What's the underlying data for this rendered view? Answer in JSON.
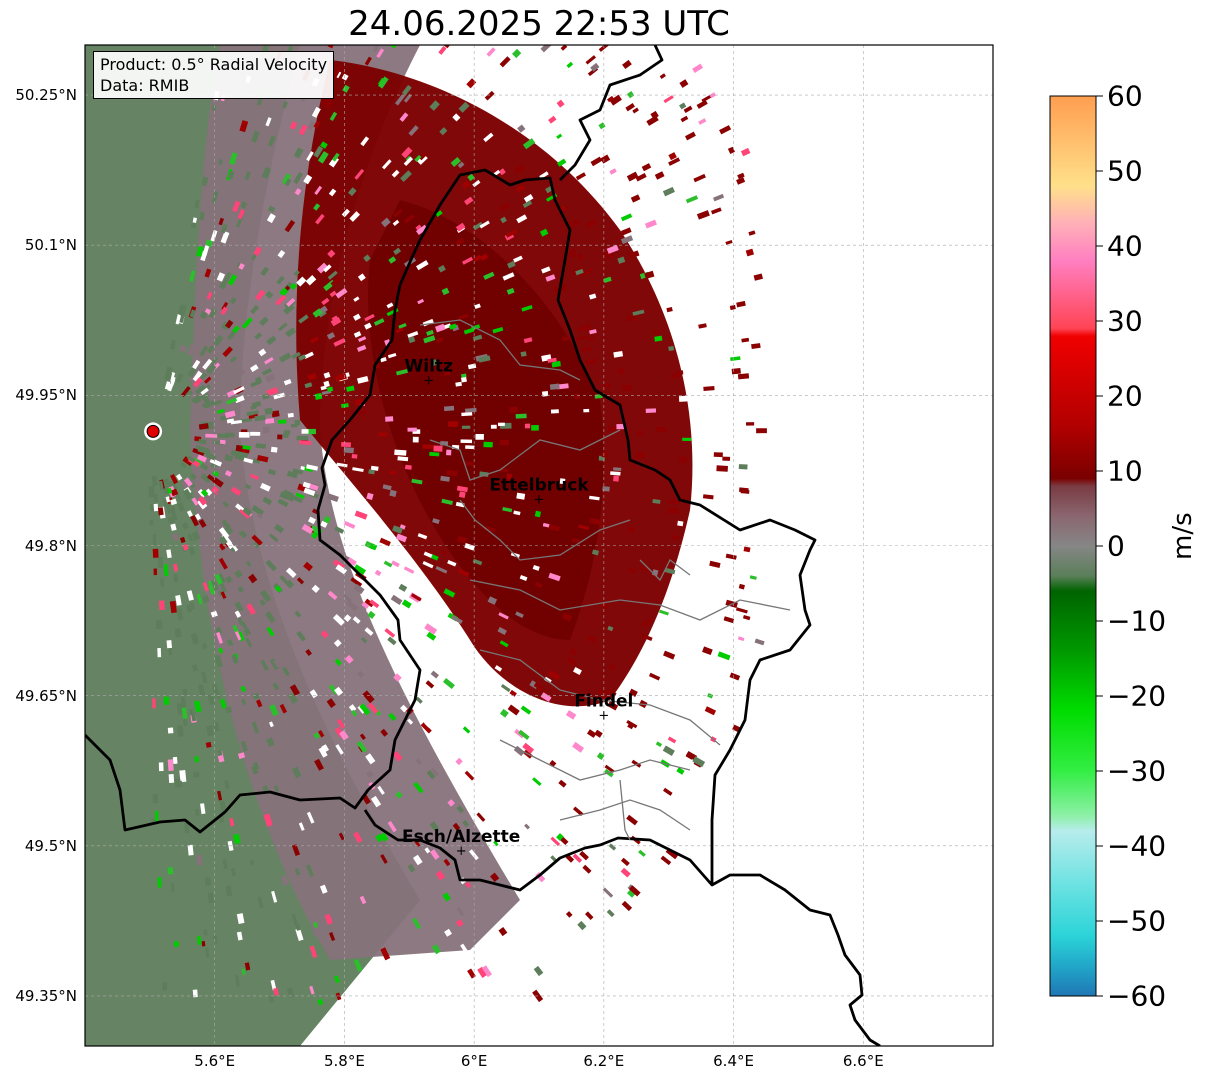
{
  "title": "24.06.2025 22:53 UTC",
  "info": {
    "product": "Product: 0.5° Radial Velocity",
    "source": "Data: RMIB"
  },
  "map": {
    "lon_range": [
      5.4,
      6.8
    ],
    "lat_range": [
      49.3,
      50.3
    ],
    "lat_ticks": [
      {
        "value": 50.25,
        "label": "50.25°N"
      },
      {
        "value": 50.1,
        "label": "50.1°N"
      },
      {
        "value": 49.95,
        "label": "49.95°N"
      },
      {
        "value": 49.8,
        "label": "49.8°N"
      },
      {
        "value": 49.65,
        "label": "49.65°N"
      },
      {
        "value": 49.5,
        "label": "49.5°N"
      },
      {
        "value": 49.35,
        "label": "49.35°N"
      }
    ],
    "lon_ticks": [
      {
        "value": 5.6,
        "label": "5.6°E"
      },
      {
        "value": 5.8,
        "label": "5.8°E"
      },
      {
        "value": 6.0,
        "label": "6°E"
      },
      {
        "value": 6.2,
        "label": "6.2°E"
      },
      {
        "value": 6.4,
        "label": "6.4°E"
      },
      {
        "value": 6.6,
        "label": "6.6°E"
      }
    ],
    "gridlines": true,
    "radar_site": {
      "lon": 5.505,
      "lat": 49.914
    },
    "cities": [
      {
        "name": "Wiltz",
        "lon": 5.93,
        "lat": 49.966
      },
      {
        "name": "Ettelbruck",
        "lon": 6.1,
        "lat": 49.847
      },
      {
        "name": "Findel",
        "lon": 6.2,
        "lat": 49.631
      },
      {
        "name": "Esch/Alzette",
        "lon": 5.98,
        "lat": 49.496
      }
    ]
  },
  "colorbar": {
    "unit": "m/s",
    "min": -60,
    "max": 60,
    "ticks": [
      {
        "value": 60,
        "label": "60"
      },
      {
        "value": 50,
        "label": "50"
      },
      {
        "value": 40,
        "label": "40"
      },
      {
        "value": 30,
        "label": "30"
      },
      {
        "value": 20,
        "label": "20"
      },
      {
        "value": 10,
        "label": "10"
      },
      {
        "value": 0,
        "label": "0"
      },
      {
        "value": -10,
        "label": "−10"
      },
      {
        "value": -20,
        "label": "−20"
      },
      {
        "value": -30,
        "label": "−30"
      },
      {
        "value": -40,
        "label": "−40"
      },
      {
        "value": -50,
        "label": "−50"
      },
      {
        "value": -60,
        "label": "−60"
      }
    ],
    "stops": [
      {
        "value": -60,
        "color": "#1f77b4"
      },
      {
        "value": -56,
        "color": "#21a7c9"
      },
      {
        "value": -52,
        "color": "#2bd4d8"
      },
      {
        "value": -45,
        "color": "#6ee2e2"
      },
      {
        "value": -38,
        "color": "#b7ecec"
      },
      {
        "value": -36,
        "color": "#8ef0a8"
      },
      {
        "value": -30,
        "color": "#33ee44"
      },
      {
        "value": -22,
        "color": "#00dd00"
      },
      {
        "value": -14,
        "color": "#009900"
      },
      {
        "value": -6,
        "color": "#006400"
      },
      {
        "value": -4,
        "color": "#5a7f59"
      },
      {
        "value": 0,
        "color": "#868686"
      },
      {
        "value": 4,
        "color": "#8a6670"
      },
      {
        "value": 8,
        "color": "#7a3b42"
      },
      {
        "value": 9,
        "color": "#7a0000"
      },
      {
        "value": 16,
        "color": "#b20000"
      },
      {
        "value": 28,
        "color": "#f00000"
      },
      {
        "value": 29,
        "color": "#ff4455"
      },
      {
        "value": 38,
        "color": "#ff7fc0"
      },
      {
        "value": 43,
        "color": "#ffb0b8"
      },
      {
        "value": 48,
        "color": "#ffe08a"
      },
      {
        "value": 60,
        "color": "#ff9e50"
      }
    ]
  }
}
